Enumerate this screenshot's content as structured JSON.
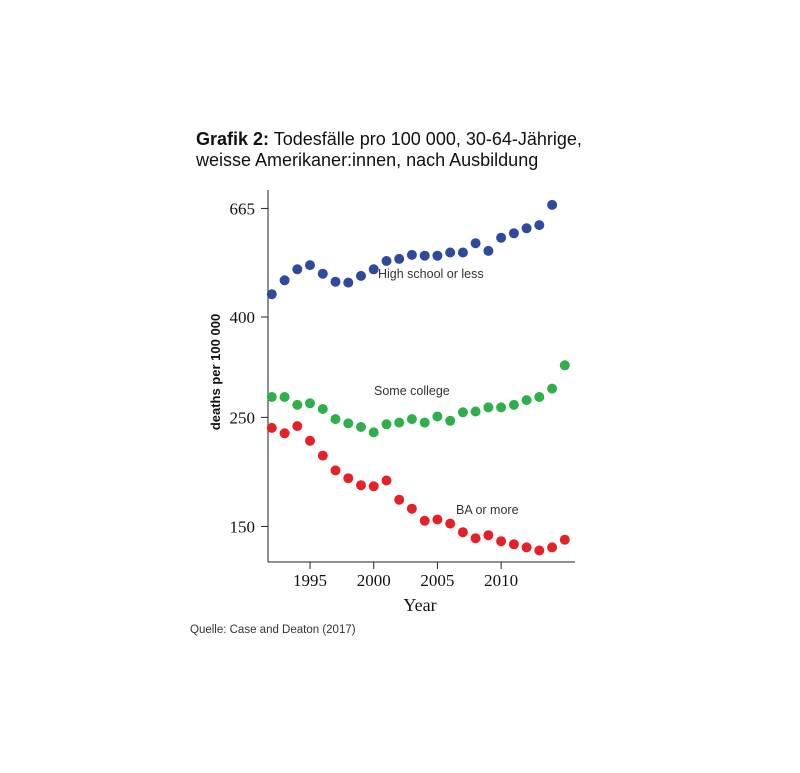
{
  "header": {
    "title_bold": "Grafik 2:",
    "title_rest": " Todesfälle pro 100 000, 30-64-Jährige,",
    "title_line2": "weisse Amerikaner:innen, nach Ausbildung"
  },
  "source": "Quelle: Case and Deaton (2017)",
  "chart_data": {
    "type": "scatter",
    "xlabel": "Year",
    "ylabel": "deaths per 100 000",
    "scale_y": "log",
    "ylim": [
      127,
      725
    ],
    "xlim": [
      1991.7,
      2015.8
    ],
    "yticks": [
      150,
      250,
      400,
      665
    ],
    "xticks": [
      1995,
      2000,
      2005,
      2010
    ],
    "colors": {
      "high_school": "#2f4a9c",
      "some_college": "#2eaf4a",
      "ba": "#e32227"
    },
    "x": [
      1992,
      1993,
      1994,
      1995,
      1996,
      1997,
      1998,
      1999,
      2000,
      2001,
      2002,
      2003,
      2004,
      2005,
      2006,
      2007,
      2008,
      2009,
      2010,
      2011,
      2012,
      2013,
      2014,
      2015
    ],
    "series": [
      {
        "label": "High school or less",
        "key": "high_school",
        "values": [
          445,
          475,
          500,
          510,
          490,
          472,
          470,
          485,
          500,
          520,
          525,
          535,
          533,
          533,
          541,
          541,
          565,
          545,
          580,
          592,
          606,
          615,
          676,
          0
        ]
      },
      {
        "label": "Some college",
        "key": "some_college",
        "values": [
          275,
          275,
          265,
          267,
          260,
          248,
          243,
          239,
          233,
          242,
          244,
          248,
          244,
          251,
          246,
          256,
          257,
          262,
          262,
          265,
          271,
          275,
          286,
          319
        ]
      },
      {
        "label": "BA or more",
        "key": "ba",
        "values": [
          238,
          232,
          240,
          224,
          209,
          195,
          188,
          182,
          181,
          186,
          170,
          163,
          154,
          155,
          152,
          146,
          142,
          144,
          140,
          138,
          136,
          134,
          136,
          141
        ]
      }
    ]
  }
}
